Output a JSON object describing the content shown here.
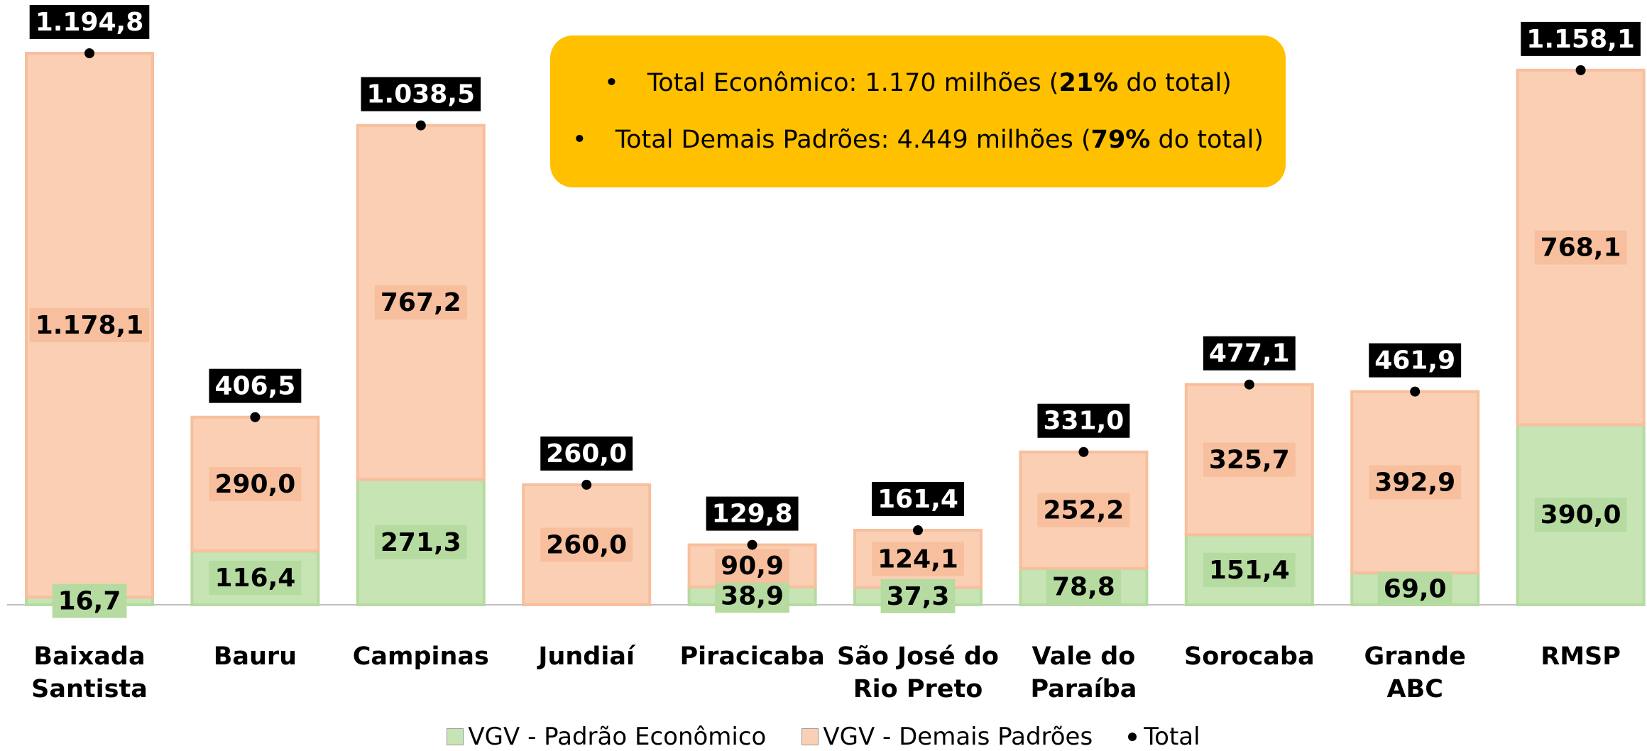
{
  "chart_data": {
    "type": "stacked_bar",
    "categories": [
      "Baixada Santista",
      "Bauru",
      "Campinas",
      "Jundiaí",
      "Piracicaba",
      "São José do Rio Preto",
      "Vale do Paraíba",
      "Sorocaba",
      "Grande ABC",
      "RMSP"
    ],
    "series": [
      {
        "name": "VGV - Padrão Econômico",
        "color": "#c6e4b4",
        "values": [
          16.7,
          116.4,
          271.3,
          null,
          38.9,
          37.3,
          78.8,
          151.4,
          69.0,
          390.0
        ],
        "value_labels": [
          "16,7",
          "116,4",
          "271,3",
          null,
          "38,9",
          "37,3",
          "78,8",
          "151,4",
          "69,0",
          "390,0"
        ]
      },
      {
        "name": "VGV - Demais Padrões",
        "color": "#fbcfb3",
        "values": [
          1178.1,
          290.0,
          767.2,
          260.0,
          90.9,
          124.1,
          252.2,
          325.7,
          392.9,
          768.1
        ],
        "value_labels": [
          "1.178,1",
          "290,0",
          "767,2",
          "260,0",
          "90,9",
          "124,1",
          "252,2",
          "325,7",
          "392,9",
          "768,1"
        ]
      },
      {
        "name": "Total",
        "color": "#000000",
        "type": "dot",
        "values": [
          1194.8,
          406.5,
          1038.5,
          260.0,
          129.8,
          161.4,
          331.0,
          477.1,
          461.9,
          1158.1
        ],
        "value_labels": [
          "1.194,8",
          "406,5",
          "1.038,5",
          "260,0",
          "129,8",
          "161,4",
          "331,0",
          "477,1",
          "461,9",
          "1.158,1"
        ]
      }
    ],
    "annotations": [
      {
        "parts": [
          "Total Econômico: 1.170 milhões (",
          "21%",
          " do total)"
        ]
      },
      {
        "parts": [
          "Total Demais Padrões: 4.449 milhões (",
          "79%",
          " do total)"
        ]
      }
    ]
  }
}
